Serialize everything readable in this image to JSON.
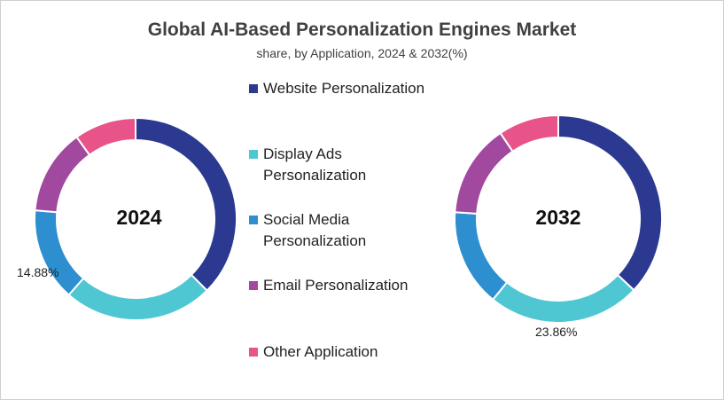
{
  "chart_data": {
    "type": "donut",
    "title": "Global AI-Based Personalization  Engines Market",
    "subtitle": "share, by Application, 2024 & 2032(%)",
    "legend_position": "center",
    "categories": [
      "Website Personalization",
      "Display Ads Personalization",
      "Social Media Personalization",
      "Email Personalization",
      "Other Application"
    ],
    "legend": [
      {
        "label": "Website Personalization",
        "color": "#2b3990"
      },
      {
        "label": "Display Ads\nPersonalization",
        "color": "#4fc7d3"
      },
      {
        "label": "Social Media\nPersonalization",
        "color": "#2d8fd0"
      },
      {
        "label": "Email Personalization",
        "color": "#a1489f"
      },
      {
        "label": "Other Application",
        "color": "#e8548a"
      }
    ],
    "charts": [
      {
        "label": "2024",
        "values": [
          37.5,
          24.0,
          14.88,
          13.7,
          9.92
        ],
        "data_labels": [
          {
            "index": 2,
            "text": "14.88%"
          }
        ]
      },
      {
        "label": "2032",
        "values": [
          37.0,
          23.86,
          15.2,
          14.5,
          9.44
        ],
        "data_labels": [
          {
            "index": 1,
            "text": "23.86%"
          }
        ]
      }
    ]
  }
}
